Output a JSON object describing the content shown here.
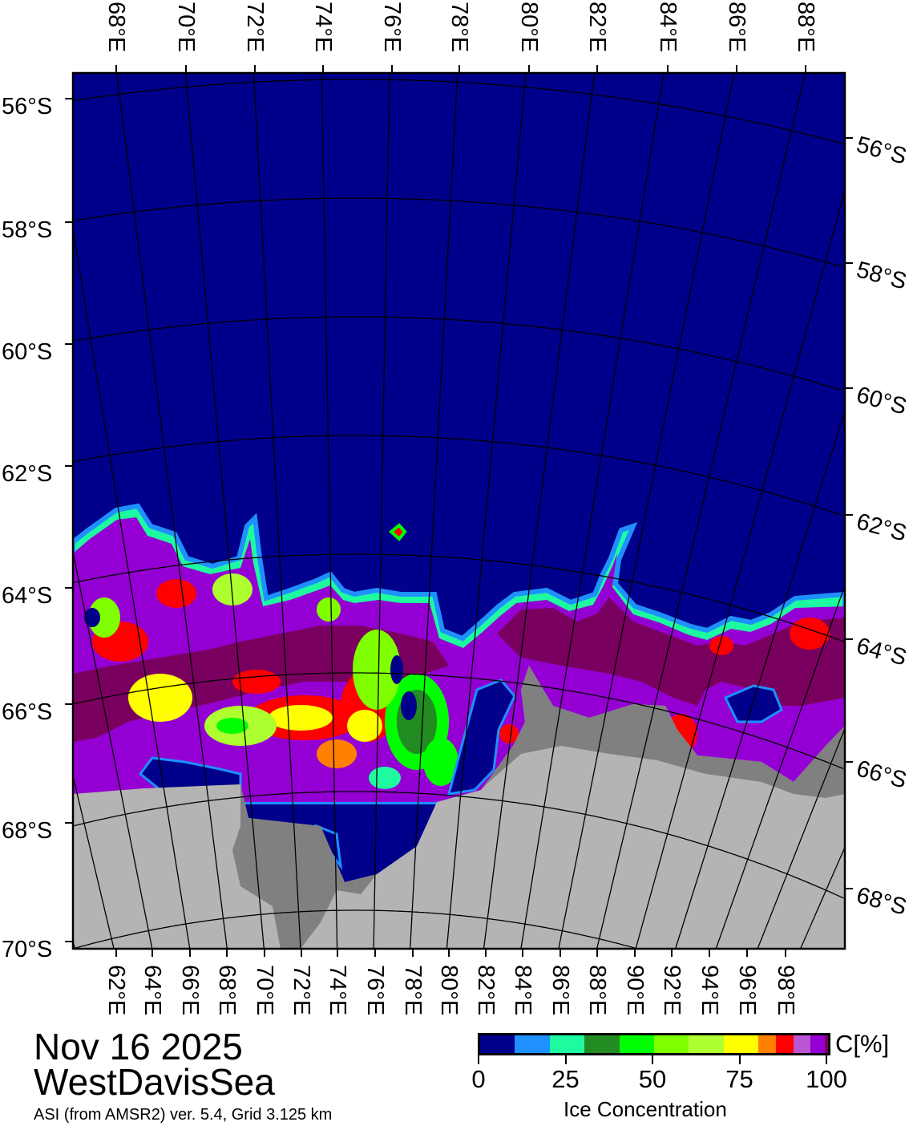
{
  "title": {
    "date": "Nov 16 2025",
    "region": "WestDavisSea",
    "source": "ASI (from AMSR2) ver. 5.4,  Grid 3.125 km"
  },
  "colorbar": {
    "unit": "C[%]",
    "label": "Ice Concentration",
    "ticks": [
      "0",
      "25",
      "50",
      "75",
      "100"
    ],
    "bins": [
      {
        "from": 0,
        "to": 10,
        "color": "#00008b"
      },
      {
        "from": 10,
        "to": 20,
        "color": "#1e90ff"
      },
      {
        "from": 20,
        "to": 30,
        "color": "#1efaa0"
      },
      {
        "from": 30,
        "to": 40,
        "color": "#228b22"
      },
      {
        "from": 40,
        "to": 50,
        "color": "#00ff00"
      },
      {
        "from": 50,
        "to": 60,
        "color": "#7fff00"
      },
      {
        "from": 60,
        "to": 70,
        "color": "#adff2f"
      },
      {
        "from": 70,
        "to": 80,
        "color": "#ffff00"
      },
      {
        "from": 80,
        "to": 85,
        "color": "#ff8000"
      },
      {
        "from": 85,
        "to": 90,
        "color": "#ff0000"
      },
      {
        "from": 90,
        "to": 95,
        "color": "#ba55d3"
      },
      {
        "from": 95,
        "to": 99,
        "color": "#9400d3"
      },
      {
        "from": 99,
        "to": 100,
        "color": "#7a0060"
      }
    ]
  },
  "map": {
    "colors": {
      "ocean": "#00008b",
      "land": "#b4b4b4",
      "ice_shelf": "#808080",
      "grid": "#000000"
    },
    "top_labels": [
      "68°E",
      "70°E",
      "72°E",
      "74°E",
      "76°E",
      "78°E",
      "80°E",
      "82°E",
      "84°E",
      "86°E",
      "88°E"
    ],
    "bottom_labels": [
      "62°E",
      "64°E",
      "66°E",
      "68°E",
      "70°E",
      "72°E",
      "74°E",
      "76°E",
      "78°E",
      "80°E",
      "82°E",
      "84°E",
      "86°E",
      "88°E",
      "90°E",
      "92°E",
      "94°E",
      "96°E",
      "98°E"
    ],
    "left_labels": [
      "56°S",
      "58°S",
      "60°S",
      "62°S",
      "64°S",
      "66°S",
      "68°S",
      "70°S"
    ],
    "right_labels": [
      "56°S",
      "58°S",
      "60°S",
      "62°S",
      "64°S",
      "66°S",
      "68°S"
    ]
  }
}
